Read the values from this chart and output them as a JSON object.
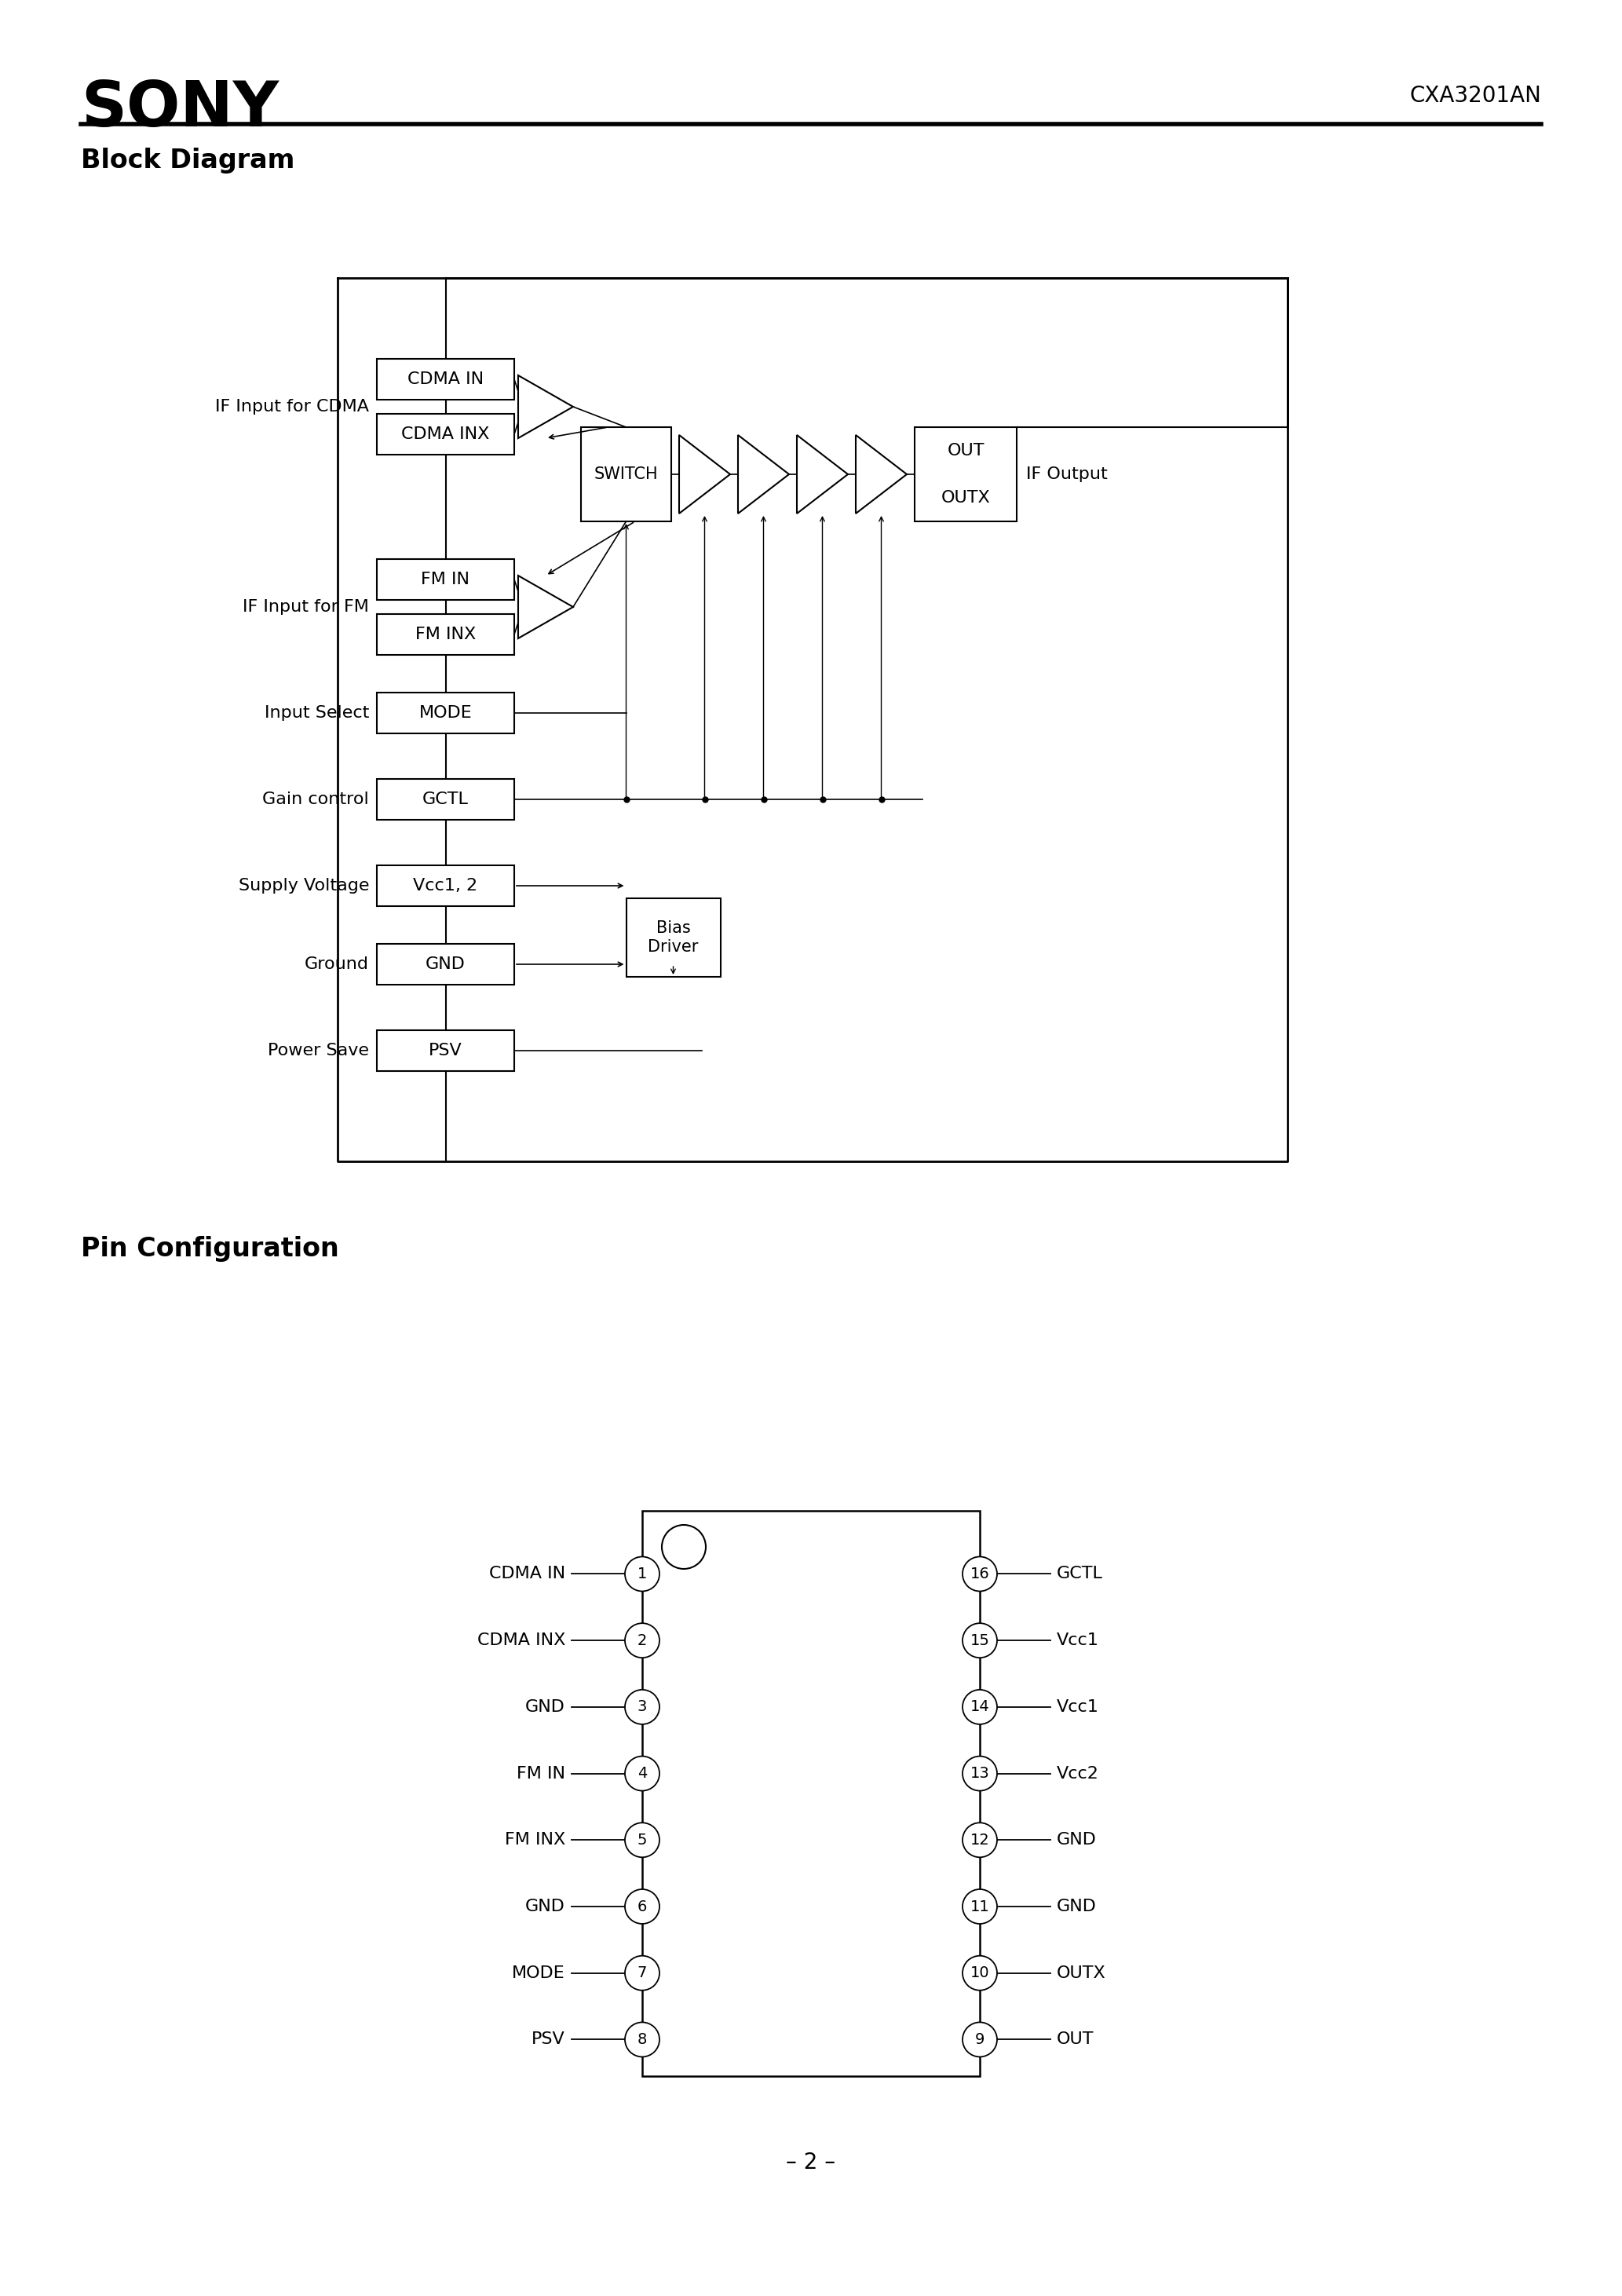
{
  "title": "SONY",
  "part_number": "CXA3201AN",
  "block_diagram_title": "Block Diagram",
  "pin_config_title": "Pin Configuration",
  "page_number": "– 2 –",
  "background_color": "#ffffff",
  "line_color": "#000000",
  "left_pins": [
    {
      "num": 1,
      "name": "CDMA IN"
    },
    {
      "num": 2,
      "name": "CDMA INX"
    },
    {
      "num": 3,
      "name": "GND"
    },
    {
      "num": 4,
      "name": "FM IN"
    },
    {
      "num": 5,
      "name": "FM INX"
    },
    {
      "num": 6,
      "name": "GND"
    },
    {
      "num": 7,
      "name": "MODE"
    },
    {
      "num": 8,
      "name": "PSV"
    }
  ],
  "right_pins": [
    {
      "num": 16,
      "name": "GCTL"
    },
    {
      "num": 15,
      "name": "Vcc1"
    },
    {
      "num": 14,
      "name": "Vcc1"
    },
    {
      "num": 13,
      "name": "Vcc2"
    },
    {
      "num": 12,
      "name": "GND"
    },
    {
      "num": 11,
      "name": "GND"
    },
    {
      "num": 10,
      "name": "OUTX"
    },
    {
      "num": 9,
      "name": "OUT"
    }
  ]
}
